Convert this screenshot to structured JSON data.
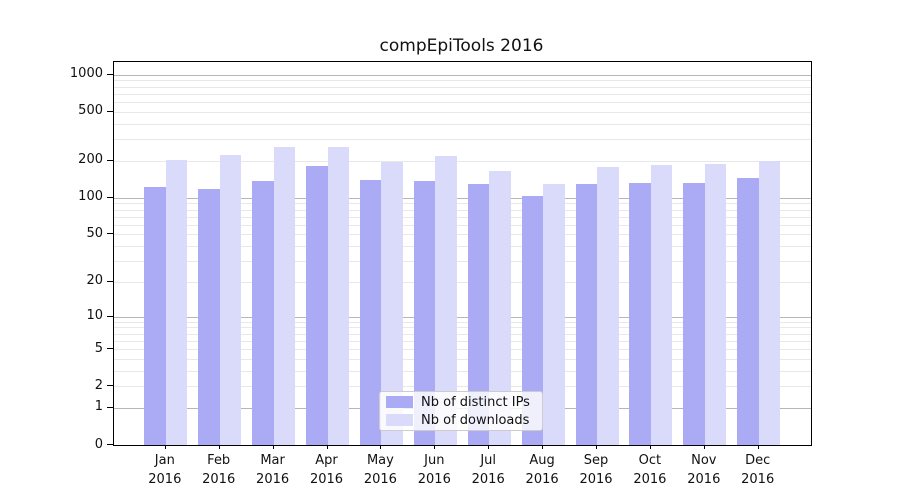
{
  "title": "compEpiTools 2016",
  "colors": {
    "ips": "#aaaaf5",
    "downloads": "#dadafa",
    "grid_major": "#b6b6b6",
    "grid_minor": "#e8e8e8",
    "axis": "#000000"
  },
  "chart_data": {
    "type": "bar",
    "title": "compEpiTools 2016",
    "categories": [
      "Jan 2016",
      "Feb 2016",
      "Mar 2016",
      "Apr 2016",
      "May 2016",
      "Jun 2016",
      "Jul 2016",
      "Aug 2016",
      "Sep 2016",
      "Oct 2016",
      "Nov 2016",
      "Dec 2016"
    ],
    "series": [
      {
        "name": "Nb of distinct IPs",
        "color": "#aaaaf5",
        "values": [
          123,
          118,
          136,
          182,
          139,
          138,
          129,
          104,
          129,
          133,
          132,
          144
        ]
      },
      {
        "name": "Nb of downloads",
        "color": "#dadafa",
        "values": [
          204,
          224,
          257,
          260,
          197,
          220,
          166,
          129,
          179,
          185,
          190,
          199
        ]
      }
    ],
    "xlabel": "",
    "ylabel": "",
    "y_scale": "log10(v+1)",
    "y_ticks": [
      0,
      1,
      2,
      5,
      10,
      20,
      50,
      100,
      200,
      500,
      1000
    ],
    "ylim": [
      0,
      1275
    ],
    "grid": "on",
    "legend_position": "inside lower center"
  }
}
